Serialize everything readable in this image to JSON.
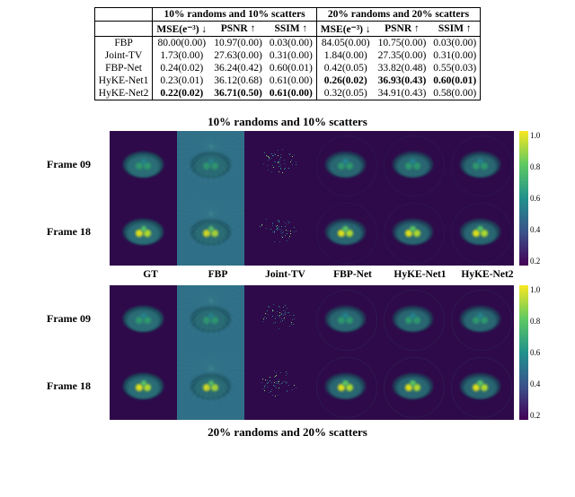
{
  "table": {
    "group_headers": [
      "10% randoms and 10% scatters",
      "20% randoms and 20% scatters"
    ],
    "metric_headers": [
      "MSE(e⁻³) ↓",
      "PSNR ↑",
      "SSIM ↑",
      "MSE(e⁻³) ↓",
      "PSNR ↑",
      "SSIM ↑"
    ],
    "rows": [
      {
        "label": "FBP",
        "cells": [
          "80.00(0.00)",
          "10.97(0.00)",
          "0.03(0.00)",
          "84.05(0.00)",
          "10.75(0.00)",
          "0.03(0.00)"
        ],
        "bold": [
          false,
          false,
          false,
          false,
          false,
          false
        ]
      },
      {
        "label": "Joint-TV",
        "cells": [
          "1.73(0.00)",
          "27.63(0.00)",
          "0.31(0.00)",
          "1.84(0.00)",
          "27.35(0.00)",
          "0.31(0.00)"
        ],
        "bold": [
          false,
          false,
          false,
          false,
          false,
          false
        ]
      },
      {
        "label": "FBP-Net",
        "cells": [
          "0.24(0.02)",
          "36.24(0.42)",
          "0.60(0.01)",
          "0.42(0.05)",
          "33.82(0.48)",
          "0.55(0.03)"
        ],
        "bold": [
          false,
          false,
          false,
          false,
          false,
          false
        ]
      },
      {
        "label": "HyKE-Net1",
        "cells": [
          "0.23(0.01)",
          "36.12(0.68)",
          "0.61(0.00)",
          "0.26(0.02)",
          "36.93(0.43)",
          "0.60(0.01)"
        ],
        "bold": [
          false,
          false,
          false,
          true,
          true,
          true
        ]
      },
      {
        "label": "HyKE-Net2",
        "cells": [
          "0.22(0.02)",
          "36.71(0.50)",
          "0.61(0.00)",
          "0.32(0.05)",
          "34.91(0.43)",
          "0.58(0.00)"
        ],
        "bold": [
          true,
          true,
          true,
          false,
          false,
          false
        ]
      }
    ]
  },
  "figure": {
    "panel_titles": [
      "10% randoms and 10% scatters",
      "20% randoms and 20% scatters"
    ],
    "row_labels": [
      "Frame 09",
      "Frame 18"
    ],
    "col_labels": [
      "GT",
      "FBP",
      "Joint-TV",
      "FBP-Net",
      "HyKE-Net1",
      "HyKE-Net2"
    ],
    "cell_size": 75,
    "bg_color": "#2e0a4a",
    "fbp_bg_color": "#2f6f87",
    "outline_color": "#1f5a66",
    "colorbar": {
      "ticks": [
        "1.0",
        "0.8",
        "0.6",
        "0.4",
        "0.2"
      ],
      "gradient_stops": [
        "#f9e721",
        "#5ec962",
        "#21918c",
        "#3b528b",
        "#440154"
      ]
    },
    "panels": [
      {
        "rows": [
          {
            "intensity": 0.55
          },
          {
            "intensity": 0.85
          }
        ]
      },
      {
        "rows": [
          {
            "intensity": 0.55
          },
          {
            "intensity": 0.85
          }
        ]
      }
    ]
  }
}
